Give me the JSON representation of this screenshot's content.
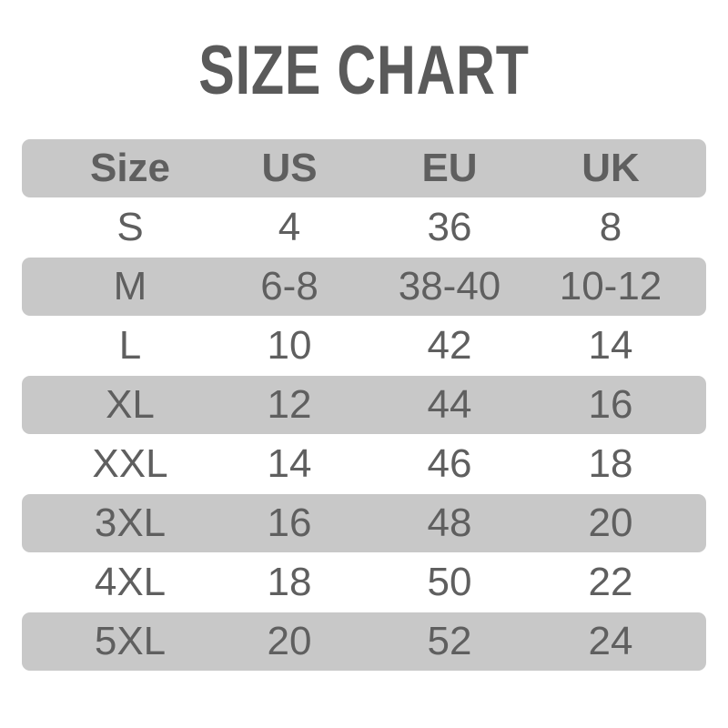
{
  "title": "SIZE CHART",
  "colors": {
    "band": "#c8c8c8",
    "text": "#5f5f5f"
  },
  "headers": [
    "Size",
    "US",
    "EU",
    "UK"
  ],
  "rows": [
    [
      "S",
      "4",
      "36",
      "8"
    ],
    [
      "M",
      "6-8",
      "38-40",
      "10-12"
    ],
    [
      "L",
      "10",
      "42",
      "14"
    ],
    [
      "XL",
      "12",
      "44",
      "16"
    ],
    [
      "XXL",
      "14",
      "46",
      "18"
    ],
    [
      "3XL",
      "16",
      "48",
      "20"
    ],
    [
      "4XL",
      "18",
      "50",
      "22"
    ],
    [
      "5XL",
      "20",
      "52",
      "24"
    ]
  ]
}
